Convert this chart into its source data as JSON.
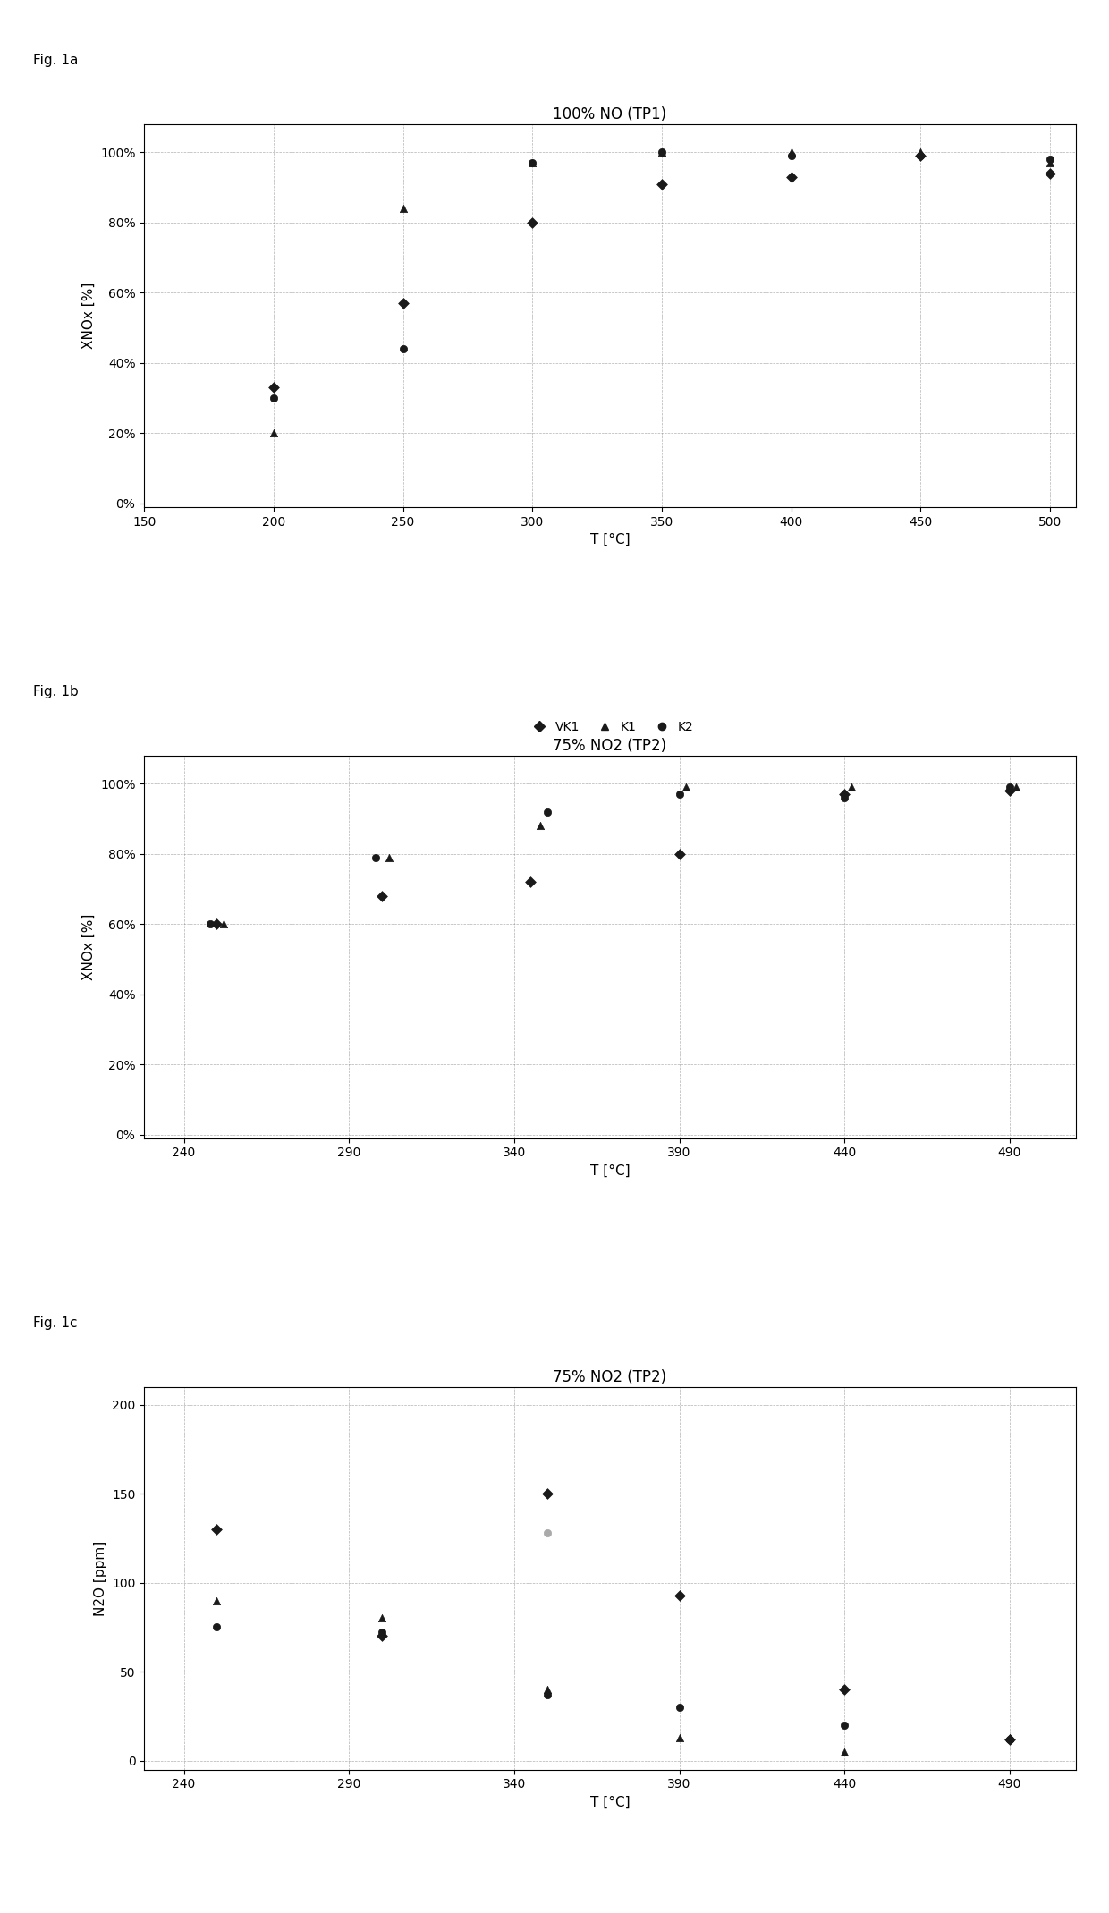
{
  "fig1a": {
    "title": "100% NO (TP1)",
    "xlabel": "T [°C]",
    "ylabel": "XNOx [%]",
    "xlim": [
      150,
      510
    ],
    "ylim": [
      -0.01,
      1.08
    ],
    "xticks": [
      150,
      200,
      250,
      300,
      350,
      400,
      450,
      500
    ],
    "yticks": [
      0.0,
      0.2,
      0.4,
      0.6,
      0.8,
      1.0
    ],
    "ytick_labels": [
      "0%",
      "20%",
      "40%",
      "60%",
      "80%",
      "100%"
    ],
    "VK1": {
      "T": [
        200,
        250,
        300,
        350,
        400,
        450,
        500
      ],
      "Y": [
        0.33,
        0.57,
        0.8,
        0.91,
        0.93,
        0.99,
        0.94
      ]
    },
    "K1": {
      "T": [
        200,
        250,
        300,
        350,
        400,
        450,
        500
      ],
      "Y": [
        0.2,
        0.84,
        0.97,
        1.0,
        1.0,
        1.0,
        0.97
      ]
    },
    "K2": {
      "T": [
        200,
        250,
        300,
        350,
        400,
        450,
        500
      ],
      "Y": [
        0.3,
        0.44,
        0.97,
        1.0,
        0.99,
        0.99,
        0.98
      ]
    }
  },
  "fig1b": {
    "title": "75% NO2 (TP2)",
    "xlabel": "T [°C]",
    "ylabel": "XNOx [%]",
    "xlim": [
      228,
      510
    ],
    "ylim": [
      -0.01,
      1.08
    ],
    "xticks": [
      240,
      290,
      340,
      390,
      440,
      490
    ],
    "yticks": [
      0.0,
      0.2,
      0.4,
      0.6,
      0.8,
      1.0
    ],
    "ytick_labels": [
      "0%",
      "20%",
      "40%",
      "60%",
      "80%",
      "100%"
    ],
    "VK1": {
      "T": [
        250,
        300,
        345,
        390,
        440,
        490
      ],
      "Y": [
        0.6,
        0.68,
        0.72,
        0.8,
        0.97,
        0.98
      ]
    },
    "K1": {
      "T": [
        252,
        302,
        348,
        392,
        442,
        492
      ],
      "Y": [
        0.6,
        0.79,
        0.88,
        0.99,
        0.99,
        0.99
      ]
    },
    "K2": {
      "T": [
        248,
        298,
        350,
        390,
        440,
        490
      ],
      "Y": [
        0.6,
        0.79,
        0.92,
        0.97,
        0.96,
        0.99
      ]
    }
  },
  "fig1c": {
    "title": "75% NO2 (TP2)",
    "xlabel": "T [°C]",
    "ylabel": "N2O [ppm]",
    "xlim": [
      228,
      510
    ],
    "ylim": [
      -5,
      210
    ],
    "xticks": [
      240,
      290,
      340,
      390,
      440,
      490
    ],
    "yticks": [
      0,
      50,
      100,
      150,
      200
    ],
    "VK1": {
      "T": [
        250,
        300,
        350,
        390,
        440,
        490
      ],
      "Y": [
        130,
        70,
        150,
        93,
        40,
        12
      ]
    },
    "K1": {
      "T": [
        250,
        300,
        350,
        390,
        440,
        490
      ],
      "Y": [
        90,
        80,
        40,
        13,
        5,
        13
      ]
    },
    "K2": {
      "T": [
        250,
        300,
        350,
        390,
        440,
        490
      ],
      "Y": [
        75,
        72,
        37,
        30,
        20,
        12
      ]
    },
    "K2_gray": {
      "T": [
        350
      ],
      "Y": [
        128
      ]
    }
  },
  "colors": {
    "VK1": "#1a1a1a",
    "K1": "#1a1a1a",
    "K2": "#1a1a1a"
  },
  "markers": {
    "VK1": "D",
    "K1": "^",
    "K2": "o"
  },
  "marker_size": 6,
  "fig_label_fontsize": 11,
  "title_fontsize": 12,
  "tick_fontsize": 10,
  "axis_label_fontsize": 11,
  "legend_fontsize": 10,
  "fig_labels": [
    "Fig. 1a",
    "Fig. 1b",
    "Fig. 1c"
  ]
}
